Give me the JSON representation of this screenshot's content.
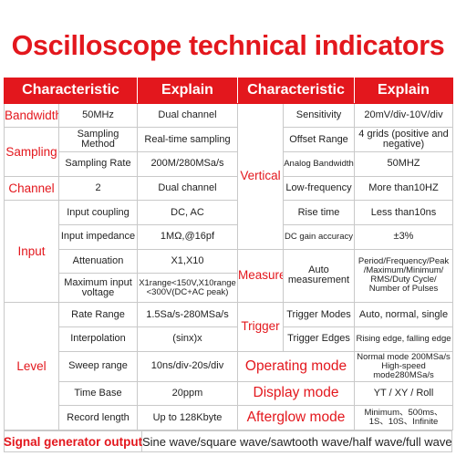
{
  "title": "Oscilloscope technical indicators",
  "header": {
    "characteristic_left": "Characteristic",
    "explain_left": "Explain",
    "characteristic_right": "Characteristic",
    "explain_right": "Explain"
  },
  "left": {
    "bandwidth": {
      "category": "Bandwidth",
      "param": "50MHz",
      "value": "Dual channel"
    },
    "sampling": {
      "category": "Sampling",
      "rows": [
        {
          "param": "Sampling Method",
          "value": "Real-time sampling"
        },
        {
          "param": "Sampling Rate",
          "value": "200M/280MSa/s"
        }
      ]
    },
    "channel": {
      "category": "Channel",
      "param": "2",
      "value": "Dual channel"
    },
    "input": {
      "category": "Input",
      "rows": [
        {
          "param": "Input coupling",
          "value": "DC, AC"
        },
        {
          "param": "Input impedance",
          "value": "1MΩ,@16pf"
        },
        {
          "param": "Attenuation",
          "value": "X1,X10"
        },
        {
          "param": "Maximum input voltage",
          "value": "X1range<150V,X10range <300V(DC+AC peak)"
        }
      ]
    },
    "level": {
      "category": "Level",
      "rows": [
        {
          "param": "Rate Range",
          "value": "1.5Sa/s-280MSa/s"
        },
        {
          "param": "Interpolation",
          "value": "(sinx)x"
        },
        {
          "param": "Sweep range",
          "value": "10ns/div-20s/div"
        },
        {
          "param": "Time Base",
          "value": "20ppm"
        },
        {
          "param": "Record length",
          "value": "Up to 128Kbyte"
        }
      ]
    }
  },
  "right": {
    "vertical": {
      "category": "Vertical",
      "rows": [
        {
          "param": "Sensitivity",
          "value": "20mV/div-10V/div"
        },
        {
          "param": "Offset Range",
          "value": "4 grids (positive and negative)"
        },
        {
          "param": "Analog Bandwidth",
          "value": "50MHZ"
        },
        {
          "param": "Low-frequency",
          "value": "More than10HZ"
        },
        {
          "param": "Rise time",
          "value": "Less than10ns"
        },
        {
          "param": "DC gain accuracy",
          "value": "±3%"
        }
      ]
    },
    "measure": {
      "category": "Measure",
      "param": "Auto measurement",
      "value": "Period/Frequency/Peak /Maximum/Minimum/ RMS/Duty Cycle/ Number of Pulses"
    },
    "trigger": {
      "category": "Trigger",
      "rows": [
        {
          "param": "Trigger Modes",
          "value": "Auto, normal, single"
        },
        {
          "param": "Trigger Edges",
          "value": "Rising edge, falling edge"
        }
      ]
    },
    "operating_mode": {
      "category": "Operating mode",
      "value": "Normal mode 200MSa/s High-speed mode280MSa/s"
    },
    "display_mode": {
      "category": "Display mode",
      "value": "YT / XY / Roll"
    },
    "afterglow_mode": {
      "category": "Afterglow mode",
      "value": "Minimum、500ms、 1S、10S、Infinite"
    }
  },
  "signal_generator": {
    "label": "Signal generator output",
    "value": "Sine wave/square wave/sawtooth wave/half wave/full wave"
  },
  "colors": {
    "accent": "#e3171d",
    "text": "#222222",
    "grid": "#c9c9c9"
  }
}
